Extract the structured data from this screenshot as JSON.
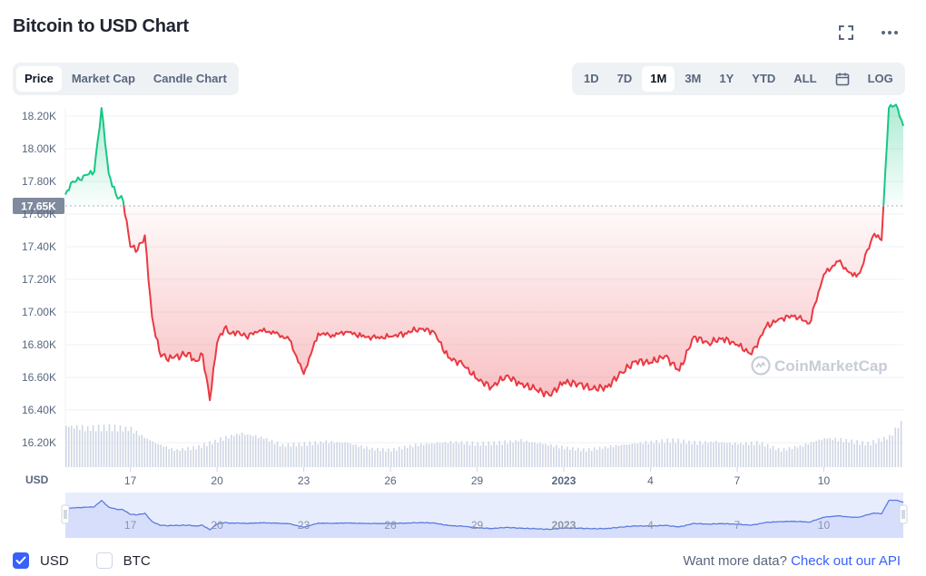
{
  "header": {
    "title": "Bitcoin to USD Chart"
  },
  "tabs_left": [
    {
      "label": "Price",
      "active": true
    },
    {
      "label": "Market Cap",
      "active": false
    },
    {
      "label": "Candle Chart",
      "active": false
    }
  ],
  "tabs_right": [
    {
      "label": "1D",
      "active": false
    },
    {
      "label": "7D",
      "active": false
    },
    {
      "label": "1M",
      "active": true
    },
    {
      "label": "3M",
      "active": false
    },
    {
      "label": "1Y",
      "active": false
    },
    {
      "label": "YTD",
      "active": false
    },
    {
      "label": "ALL",
      "active": false
    },
    {
      "label": "LOG",
      "active": false
    }
  ],
  "icons": {
    "fullscreen": "fullscreen-icon",
    "more": "more-dots-icon",
    "calendar": "calendar-icon"
  },
  "colors": {
    "up": "#16c784",
    "down": "#ea3943",
    "volume": "#cfd6e4",
    "navigator_line": "#5b7be0",
    "navigator_fill": "#e8edfd",
    "accent": "#3861fb",
    "baseline_badge": "#808a9d"
  },
  "chart_data": {
    "type": "line",
    "currency_label": "USD",
    "baseline": 17650,
    "baseline_label": "17.65K",
    "y_tick_labels": [
      "18.20K",
      "18.00K",
      "17.80K",
      "17.60K",
      "17.40K",
      "17.20K",
      "17.00K",
      "16.80K",
      "16.60K",
      "16.40K",
      "16.20K"
    ],
    "y_ticks": [
      18200,
      18000,
      17800,
      17600,
      17400,
      17200,
      17000,
      16800,
      16600,
      16400,
      16200
    ],
    "ylim": [
      16050,
      18300
    ],
    "x_tick_labels": [
      "17",
      "20",
      "23",
      "26",
      "29",
      "2023",
      "4",
      "7",
      "10"
    ],
    "x_ticks": [
      "2022-12-17",
      "2022-12-20",
      "2022-12-23",
      "2022-12-26",
      "2022-12-29",
      "2023-01-01",
      "2023-01-04",
      "2023-01-07",
      "2023-01-10"
    ],
    "xlim": [
      "2022-12-14T18:00",
      "2023-01-12T18:00"
    ],
    "watermark": "CoinMarketCap",
    "series": [
      {
        "x": [
          "2022-12-14T18:00",
          "2022-12-15T00:00",
          "2022-12-15T06:00",
          "2022-12-15T12:00",
          "2022-12-15T18:00",
          "2022-12-16T00:00",
          "2022-12-16T06:00",
          "2022-12-16T12:00",
          "2022-12-16T18:00",
          "2022-12-17T00:00",
          "2022-12-17T06:00",
          "2022-12-17T12:00",
          "2022-12-17T18:00",
          "2022-12-18T00:00",
          "2022-12-18T06:00",
          "2022-12-18T12:00",
          "2022-12-18T18:00",
          "2022-12-19T00:00",
          "2022-12-19T06:00",
          "2022-12-19T12:00",
          "2022-12-19T18:00",
          "2022-12-20T00:00",
          "2022-12-20T06:00",
          "2022-12-20T12:00",
          "2022-12-20T18:00",
          "2022-12-21T00:00",
          "2022-12-21T12:00",
          "2022-12-22T00:00",
          "2022-12-22T12:00",
          "2022-12-23T00:00",
          "2022-12-23T12:00",
          "2022-12-24T00:00",
          "2022-12-24T12:00",
          "2022-12-25T00:00",
          "2022-12-25T12:00",
          "2022-12-26T00:00",
          "2022-12-26T12:00",
          "2022-12-27T00:00",
          "2022-12-27T12:00",
          "2022-12-28T00:00",
          "2022-12-28T12:00",
          "2022-12-29T00:00",
          "2022-12-29T12:00",
          "2022-12-30T00:00",
          "2022-12-30T12:00",
          "2022-12-31T00:00",
          "2022-12-31T12:00",
          "2023-01-01T00:00",
          "2023-01-01T12:00",
          "2023-01-02T00:00",
          "2023-01-02T12:00",
          "2023-01-03T00:00",
          "2023-01-03T12:00",
          "2023-01-04T00:00",
          "2023-01-04T12:00",
          "2023-01-05T00:00",
          "2023-01-05T12:00",
          "2023-01-06T00:00",
          "2023-01-06T12:00",
          "2023-01-07T00:00",
          "2023-01-07T12:00",
          "2023-01-08T00:00",
          "2023-01-08T12:00",
          "2023-01-09T00:00",
          "2023-01-09T12:00",
          "2023-01-10T00:00",
          "2023-01-10T12:00",
          "2023-01-11T00:00",
          "2023-01-11T06:00",
          "2023-01-11T12:00",
          "2023-01-11T18:00",
          "2023-01-12T00:00",
          "2023-01-12T06:00",
          "2023-01-12T12:00",
          "2023-01-12T18:00"
        ],
        "values": [
          17720,
          17800,
          17810,
          17840,
          17860,
          18250,
          17850,
          17720,
          17680,
          17400,
          17380,
          17470,
          16970,
          16760,
          16710,
          16720,
          16730,
          16750,
          16700,
          16740,
          16460,
          16810,
          16900,
          16870,
          16880,
          16850,
          16890,
          16870,
          16830,
          16620,
          16870,
          16860,
          16880,
          16850,
          16840,
          16850,
          16870,
          16900,
          16880,
          16720,
          16680,
          16590,
          16540,
          16610,
          16560,
          16530,
          16490,
          16570,
          16560,
          16530,
          16540,
          16630,
          16700,
          16690,
          16730,
          16640,
          16850,
          16810,
          16840,
          16800,
          16740,
          16910,
          16960,
          16980,
          16930,
          17230,
          17310,
          17220,
          17240,
          17380,
          17480,
          17440,
          18250,
          18270,
          18140
        ]
      }
    ],
    "volume": {
      "x": [
        "2022-12-14T18:00",
        "2022-12-15T12:00",
        "2022-12-16T06:00",
        "2022-12-17T00:00",
        "2022-12-17T18:00",
        "2022-12-18T12:00",
        "2022-12-19T06:00",
        "2022-12-20T00:00",
        "2022-12-20T18:00",
        "2022-12-21T12:00",
        "2022-12-22T06:00",
        "2022-12-23T00:00",
        "2022-12-23T18:00",
        "2022-12-24T12:00",
        "2022-12-25T06:00",
        "2022-12-26T00:00",
        "2022-12-26T18:00",
        "2022-12-27T12:00",
        "2022-12-28T06:00",
        "2022-12-29T00:00",
        "2022-12-29T18:00",
        "2022-12-30T12:00",
        "2022-12-31T06:00",
        "2023-01-01T00:00",
        "2023-01-01T18:00",
        "2023-01-02T12:00",
        "2023-01-03T06:00",
        "2023-01-04T00:00",
        "2023-01-04T18:00",
        "2023-01-05T12:00",
        "2023-01-06T06:00",
        "2023-01-07T00:00",
        "2023-01-07T18:00",
        "2023-01-08T12:00",
        "2023-01-09T06:00",
        "2023-01-10T00:00",
        "2023-01-10T18:00",
        "2023-01-11T12:00",
        "2023-01-12T06:00",
        "2023-01-12T18:00"
      ],
      "values": [
        0.85,
        0.8,
        0.82,
        0.78,
        0.52,
        0.35,
        0.4,
        0.55,
        0.7,
        0.62,
        0.45,
        0.48,
        0.52,
        0.5,
        0.38,
        0.35,
        0.45,
        0.5,
        0.52,
        0.48,
        0.5,
        0.55,
        0.48,
        0.4,
        0.35,
        0.42,
        0.48,
        0.52,
        0.55,
        0.5,
        0.52,
        0.48,
        0.5,
        0.35,
        0.45,
        0.6,
        0.55,
        0.48,
        0.62,
        1.0
      ]
    }
  },
  "navigator": {
    "tick_labels": [
      "17",
      "20",
      "23",
      "26",
      "29",
      "2023",
      "4",
      "7",
      "10"
    ]
  },
  "footer": {
    "usd_label": "USD",
    "btc_label": "BTC",
    "api_text": "Want more data?",
    "api_link": "Check out our API"
  }
}
